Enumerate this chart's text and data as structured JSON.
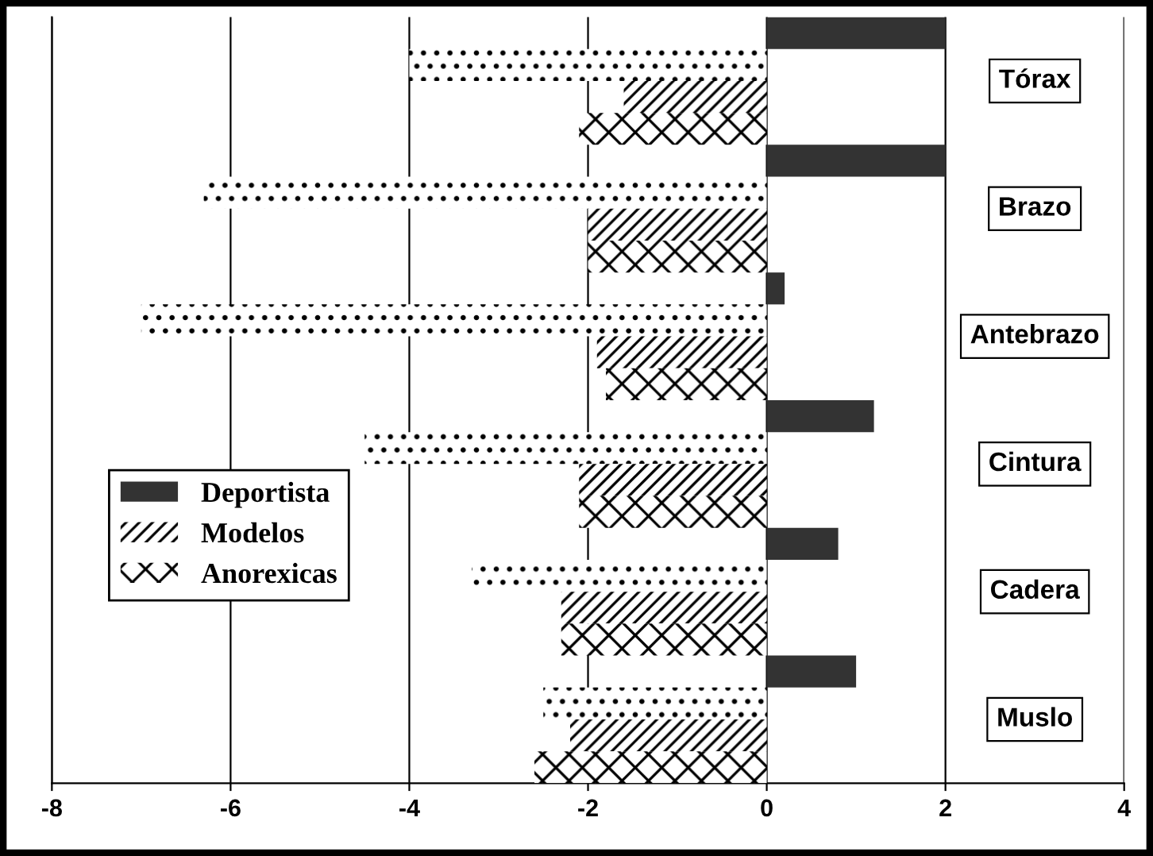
{
  "chart_data": {
    "type": "bar",
    "orientation": "horizontal",
    "categories": [
      "Tórax",
      "Brazo",
      "Antebrazo",
      "Cintura",
      "Cadera",
      "Muslo"
    ],
    "series": [
      {
        "name": "Deportista",
        "color": "#333333",
        "values": [
          2.0,
          2.0,
          0.2,
          1.2,
          0.8,
          1.0
        ]
      },
      {
        "color": "#ffffff",
        "values": [
          -4.0,
          -6.3,
          -7.0,
          -4.5,
          -3.3,
          -2.5
        ]
      },
      {
        "name": "Modelos",
        "color": "#ffffff",
        "values": [
          -1.6,
          -2.0,
          -1.9,
          -2.1,
          -2.3,
          -2.2
        ]
      },
      {
        "name": "Anorexicas",
        "color": "#ffffff",
        "values": [
          -2.1,
          -2.0,
          -1.8,
          -2.1,
          -2.3,
          -2.6
        ]
      }
    ],
    "xlim": [
      -8,
      4
    ],
    "xticks": [
      -8,
      -6,
      -4,
      -2,
      0,
      2,
      4
    ],
    "grid": "x",
    "legend": "bottom left"
  }
}
